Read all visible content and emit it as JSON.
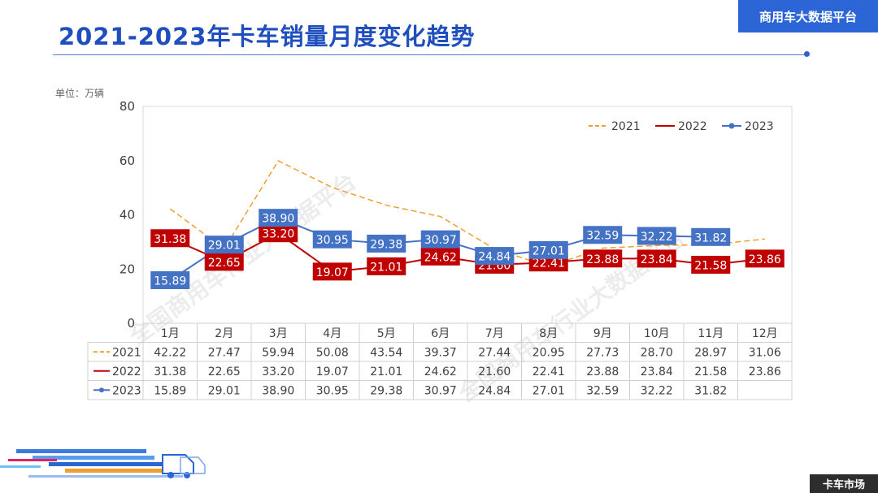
{
  "header": {
    "title": "2021-2023年卡车销量月度变化趋势",
    "brand_tab": "商用车大数据平台"
  },
  "unit_label": "单位：万辆",
  "watermarks": [
    "全国商用车行业大数据平台",
    "全国商用车行业大数据平台"
  ],
  "footer": {
    "tag": "卡车市场"
  },
  "colors": {
    "s2021": "#f0a030",
    "s2022": "#c00000",
    "s2023": "#4472c4",
    "accent": "#2c65d6"
  },
  "chart_data": {
    "type": "line",
    "ylim": [
      0,
      80
    ],
    "yticks": [
      0,
      20,
      40,
      60,
      80
    ],
    "categories": [
      "1月",
      "2月",
      "3月",
      "4月",
      "5月",
      "6月",
      "7月",
      "8月",
      "9月",
      "10月",
      "11月",
      "12月"
    ],
    "legend_position": "top-right",
    "grid": false,
    "series": [
      {
        "name": "2021",
        "style": "dashed",
        "values": [
          42.22,
          27.47,
          59.94,
          50.08,
          43.54,
          39.37,
          27.44,
          20.95,
          27.73,
          28.7,
          28.97,
          31.06
        ],
        "labels": [
          "42.22",
          "27.47",
          "59.94",
          "50.08",
          "43.54",
          "39.37",
          "27.44",
          "20.95",
          "27.73",
          "28.70",
          "28.97",
          "31.06"
        ]
      },
      {
        "name": "2022",
        "style": "solid",
        "values": [
          31.38,
          22.65,
          33.2,
          19.07,
          21.01,
          24.62,
          21.6,
          22.41,
          23.88,
          23.84,
          21.58,
          23.86
        ],
        "labels": [
          "31.38",
          "22.65",
          "33.20",
          "19.07",
          "21.01",
          "24.62",
          "21.60",
          "22.41",
          "23.88",
          "23.84",
          "21.58",
          "23.86"
        ]
      },
      {
        "name": "2023",
        "style": "marker",
        "values": [
          15.89,
          29.01,
          38.9,
          30.95,
          29.38,
          30.97,
          24.84,
          27.01,
          32.59,
          32.22,
          31.82,
          null
        ],
        "labels": [
          "15.89",
          "29.01",
          "38.90",
          "30.95",
          "29.38",
          "30.97",
          "24.84",
          "27.01",
          "32.59",
          "32.22",
          "31.82",
          ""
        ]
      }
    ]
  }
}
